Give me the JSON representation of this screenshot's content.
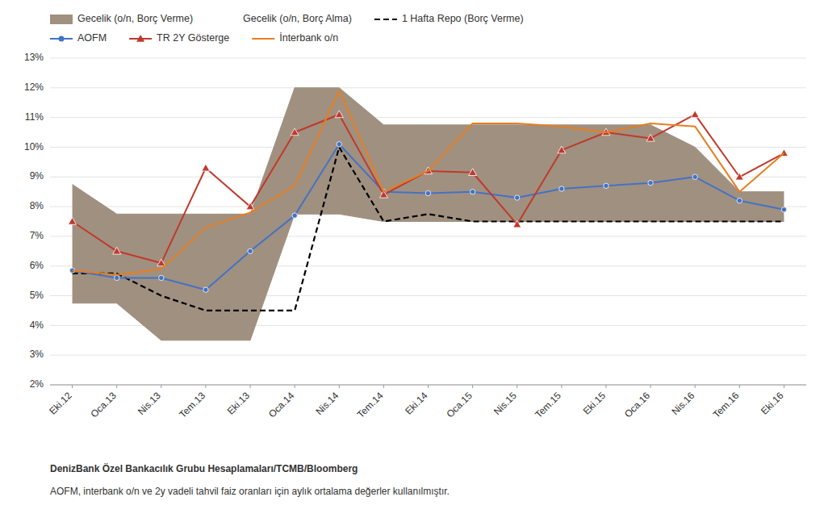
{
  "chart_data": {
    "type": "line",
    "categories": [
      "Eki.12",
      "Oca.13",
      "Nis.13",
      "Tem.13",
      "Eki.13",
      "Oca.14",
      "Nis.14",
      "Tem.14",
      "Eki.14",
      "Oca.15",
      "Nis.15",
      "Tem.15",
      "Eki.15",
      "Oca.16",
      "Nis.16",
      "Tem.16",
      "Eki.16"
    ],
    "series": [
      {
        "name": "Gecelik (o/n, Borç Verme)",
        "type": "area",
        "color": "#a09080",
        "values": [
          8.75,
          7.75,
          7.75,
          7.75,
          7.75,
          12.0,
          12.0,
          10.75,
          10.75,
          10.75,
          10.75,
          10.75,
          10.75,
          10.75,
          10.0,
          8.5,
          8.5
        ]
      },
      {
        "name": "Gecelik (o/n, Borç Alma)",
        "type": "area",
        "values": [
          4.75,
          4.75,
          3.5,
          3.5,
          3.5,
          7.75,
          7.75,
          7.5,
          7.5,
          7.5,
          7.5,
          7.5,
          7.5,
          7.5,
          7.5,
          7.5,
          7.5
        ]
      },
      {
        "name": "1 Hafta Repo (Borç Verme)",
        "type": "line",
        "color": "#000000",
        "line_style": "dashed",
        "values": [
          5.75,
          5.75,
          5.0,
          4.5,
          4.5,
          4.5,
          10.0,
          7.5,
          7.75,
          7.5,
          7.5,
          7.5,
          7.5,
          7.5,
          7.5,
          7.5,
          7.5
        ]
      },
      {
        "name": "AOFM",
        "type": "line",
        "color": "#4472c4",
        "line_style": "solid",
        "marker": "circle",
        "values": [
          5.85,
          5.6,
          5.6,
          5.2,
          6.5,
          7.7,
          10.1,
          8.5,
          8.45,
          8.5,
          8.3,
          8.6,
          8.7,
          8.8,
          9.0,
          8.2,
          7.9
        ]
      },
      {
        "name": "TR 2Y Gösterge",
        "type": "line",
        "color": "#c0392b",
        "line_style": "solid",
        "marker": "triangle",
        "values": [
          7.5,
          6.5,
          6.1,
          9.3,
          8.0,
          10.5,
          11.1,
          8.4,
          9.2,
          9.15,
          7.4,
          9.9,
          10.5,
          10.3,
          11.1,
          9.0,
          9.8
        ]
      },
      {
        "name": "İnterbank o/n",
        "type": "line",
        "color": "#e67e22",
        "line_style": "solid",
        "values": [
          5.85,
          5.7,
          5.9,
          7.3,
          7.8,
          8.7,
          11.9,
          8.5,
          9.2,
          10.8,
          10.8,
          10.7,
          10.5,
          10.8,
          10.7,
          8.5,
          9.8
        ]
      }
    ],
    "ylim": [
      2,
      13
    ],
    "yticks": [
      {
        "value": 2,
        "label": "2%"
      },
      {
        "value": 3,
        "label": "3%"
      },
      {
        "value": 4,
        "label": "4%"
      },
      {
        "value": 5,
        "label": "5%"
      },
      {
        "value": 6,
        "label": "6%"
      },
      {
        "value": 7,
        "label": "7%"
      },
      {
        "value": 8,
        "label": "8%"
      },
      {
        "value": 9,
        "label": "9%"
      },
      {
        "value": 10,
        "label": "10%"
      },
      {
        "value": 11,
        "label": "11%"
      },
      {
        "value": 12,
        "label": "12%"
      },
      {
        "value": 13,
        "label": "13%"
      }
    ],
    "grid": "y",
    "legend": "top",
    "annotations": [
      "DenizBank Özel Bankacılık Grubu Hesaplamaları/TCMB/Bloomberg",
      "AOFM, interbank o/n ve 2y vadeli tahvil faiz oranları için aylık ortalama değerler kullanılmıştır."
    ]
  }
}
